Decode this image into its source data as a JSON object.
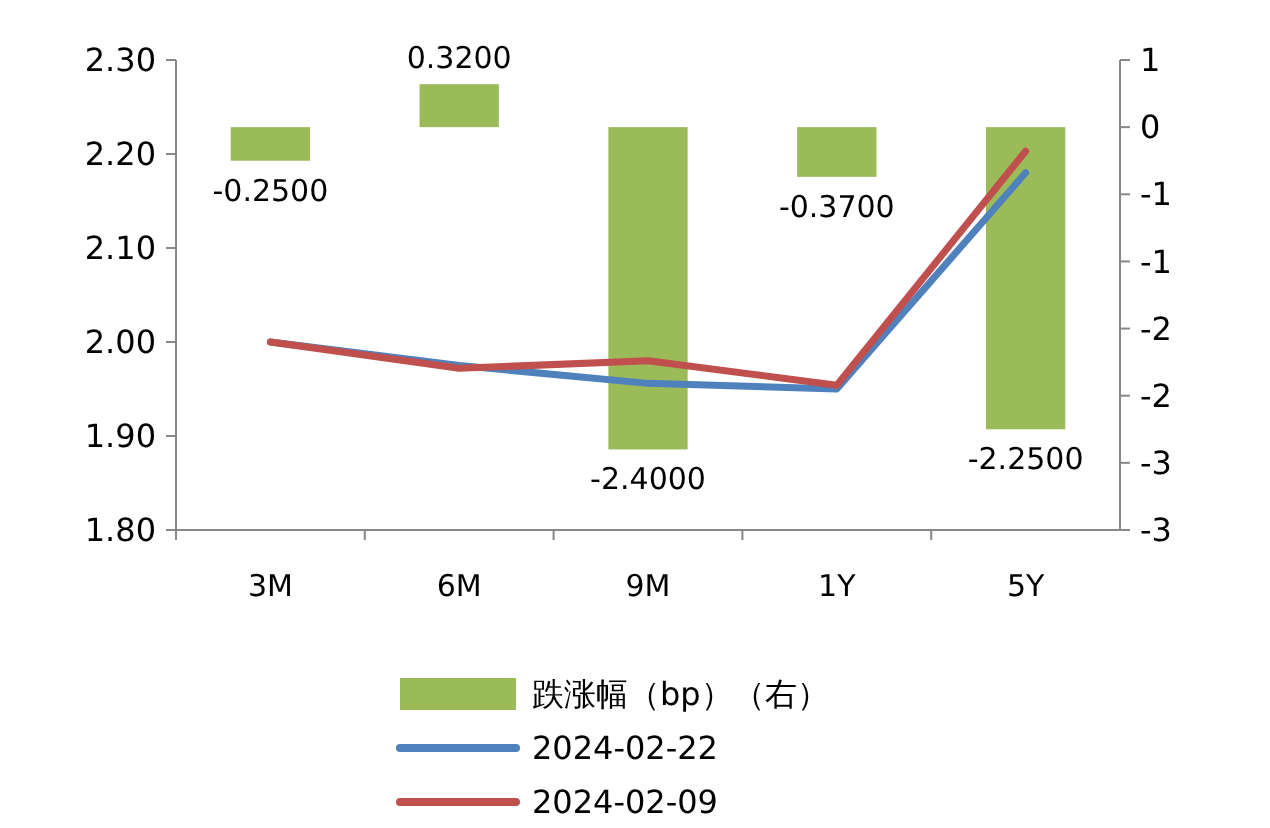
{
  "chart_data": {
    "type": "line",
    "categories": [
      "3M",
      "6M",
      "9M",
      "1Y",
      "5Y"
    ],
    "series": [
      {
        "name": "跌涨幅（bp）（右）",
        "type": "bar",
        "axis": "y2",
        "color": "#9bbb59",
        "values": [
          -0.25,
          0.32,
          -2.4,
          -0.37,
          -2.25
        ],
        "value_labels": [
          "-0.2500",
          "0.3200",
          "-2.4000",
          "-0.3700",
          "-2.2500"
        ]
      },
      {
        "name": "2024-02-22",
        "color": "#4f81bd",
        "values": [
          2.0,
          1.975,
          1.956,
          1.95,
          2.18
        ]
      },
      {
        "name": "2024-02-09",
        "color": "#c0504d",
        "values": [
          2.0,
          1.972,
          1.98,
          1.954,
          2.203
        ]
      }
    ],
    "ylim": [
      1.8,
      2.3
    ],
    "yticks": [
      {
        "value": 1.8,
        "label": "1.80"
      },
      {
        "value": 1.9,
        "label": "1.90"
      },
      {
        "value": 2.0,
        "label": "2.00"
      },
      {
        "value": 2.1,
        "label": "2.10"
      },
      {
        "value": 2.2,
        "label": "2.20"
      },
      {
        "value": 2.3,
        "label": "2.30"
      }
    ],
    "y2lim": [
      -3,
      0.5
    ],
    "y2ticks": [
      {
        "value": -3,
        "label": "-3"
      },
      {
        "value": -2.5,
        "label": "-3"
      },
      {
        "value": -2,
        "label": "-2"
      },
      {
        "value": -1.5,
        "label": "-2"
      },
      {
        "value": -1,
        "label": "-1"
      },
      {
        "value": -0.5,
        "label": "-1"
      },
      {
        "value": 0,
        "label": "0"
      },
      {
        "value": 0.5,
        "label": "1"
      }
    ],
    "grid": false,
    "legend": "bottom",
    "marker": "none",
    "line_style": "solid"
  }
}
